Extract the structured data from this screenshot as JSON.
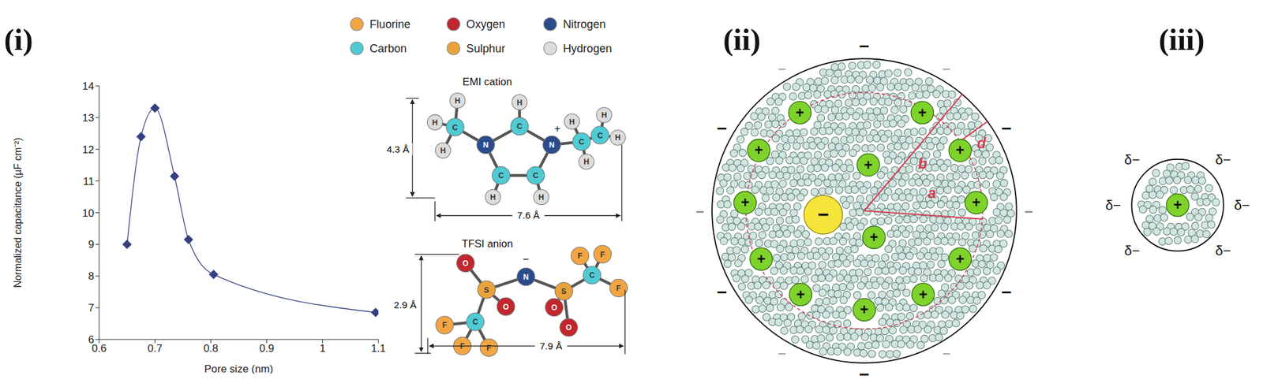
{
  "chart_data": {
    "type": "line",
    "x_label": "Pore size (nm)",
    "y_label": "Normalized capacitance (µF cm⁻²)",
    "x": [
      0.65,
      0.675,
      0.7,
      0.735,
      0.76,
      0.805,
      1.095
    ],
    "values": [
      9.0,
      12.4,
      13.3,
      11.15,
      9.15,
      8.05,
      6.85
    ],
    "color": "#34407f",
    "marker": "diamond",
    "line_style": "solid",
    "xlim": [
      0.6,
      1.1
    ],
    "xticks": [
      0.6,
      0.7,
      0.8,
      0.9,
      1,
      1.1
    ],
    "ylim": [
      6,
      14
    ],
    "yticks": [
      6,
      7,
      8,
      9,
      10,
      11,
      12,
      13,
      14
    ],
    "grid": false
  },
  "panel_labels": [
    "(i)",
    "(ii)",
    "(iii)"
  ],
  "atom_legend": [
    {
      "label": "Fluorine",
      "color": "#f2a541"
    },
    {
      "label": "Oxygen",
      "color": "#c1272d"
    },
    {
      "label": "Nitrogen",
      "color": "#2b4c8c"
    },
    {
      "label": "Carbon",
      "color": "#4ecbd3"
    },
    {
      "label": "Sulphur",
      "color": "#e9a33a"
    },
    {
      "label": "Hydrogen",
      "color": "#dcdcdc"
    }
  ],
  "atom_colors": {
    "H": "#dcdcdc",
    "C": "#4ecbd3",
    "N": "#2b4c8c",
    "O": "#c1272d",
    "S": "#e9a33a",
    "F": "#f2a541"
  },
  "molecules": [
    {
      "name": "EMI cation",
      "charge": "+",
      "height": "4.3 Å",
      "width": "7.6 Å",
      "atoms": [
        "H",
        "H",
        "H",
        "C",
        "N",
        "C",
        "H",
        "N",
        "C",
        "H",
        "C",
        "H",
        "C",
        "H",
        "H",
        "C",
        "H",
        "H"
      ]
    },
    {
      "name": "TFSI anion",
      "charge": "−",
      "height": "2.9 Å",
      "width": "7.9 Å",
      "atoms": [
        "O",
        "S",
        "O",
        "C",
        "F",
        "F",
        "F",
        "N",
        "S",
        "O",
        "O",
        "C",
        "F",
        "F",
        "F"
      ]
    }
  ],
  "diagram_ii": {
    "ions": [
      "+",
      "+",
      "+",
      "+",
      "+",
      "+",
      "+",
      "+",
      "+",
      "+",
      "+",
      "+",
      "+",
      "−"
    ],
    "wall_charges": [
      "−",
      "−",
      "−",
      "−",
      "−",
      "−",
      "−",
      "−",
      "−",
      "−",
      "−",
      "−"
    ],
    "dimensions": [
      "a",
      "b",
      "d"
    ]
  },
  "diagram_iii": {
    "ion": "+",
    "wall_charges": [
      "δ−",
      "δ−",
      "δ−",
      "δ−",
      "δ−",
      "δ−"
    ]
  }
}
